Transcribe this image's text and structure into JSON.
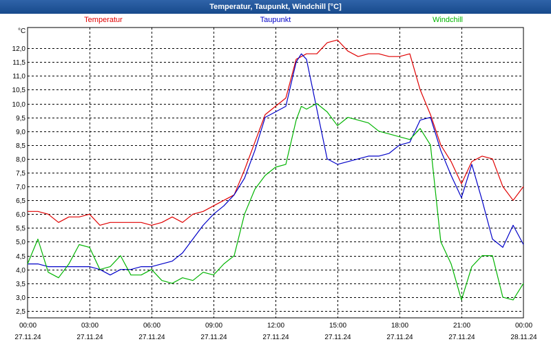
{
  "window": {
    "title": "Temperatur, Taupunkt, Windchill [°C]"
  },
  "chart_data": {
    "type": "line",
    "title": "Temperatur, Taupunkt, Windchill [°C]",
    "ylabel": "°C",
    "ylim": [
      2.25,
      12.75
    ],
    "yticks": [
      2.5,
      3.0,
      3.5,
      4.0,
      4.5,
      5.0,
      5.5,
      6.0,
      6.5,
      7.0,
      7.5,
      8.0,
      8.5,
      9.0,
      9.5,
      10.0,
      10.5,
      11.0,
      11.5,
      12.0
    ],
    "xlim": [
      0,
      24
    ],
    "xticks": [
      {
        "x": 0,
        "time": "00:00",
        "date": "27.11.24"
      },
      {
        "x": 3,
        "time": "03:00",
        "date": "27.11.24"
      },
      {
        "x": 6,
        "time": "06:00",
        "date": "27.11.24"
      },
      {
        "x": 9,
        "time": "09:00",
        "date": "27.11.24"
      },
      {
        "x": 12,
        "time": "12:00",
        "date": "27.11.24"
      },
      {
        "x": 15,
        "time": "15:00",
        "date": "27.11.24"
      },
      {
        "x": 18,
        "time": "18:00",
        "date": "27.11.24"
      },
      {
        "x": 21,
        "time": "21:00",
        "date": "27.11.24"
      },
      {
        "x": 24,
        "time": "00:00",
        "date": "28.11.24"
      }
    ],
    "grid": true,
    "legend_position": "top",
    "series": [
      {
        "name": "Temperatur",
        "color": "#e00000",
        "x": [
          0,
          0.5,
          1,
          1.5,
          2,
          2.5,
          3,
          3.5,
          4,
          4.5,
          5,
          5.5,
          6,
          6.5,
          7,
          7.5,
          8,
          8.5,
          9,
          9.5,
          10,
          10.5,
          11,
          11.5,
          12,
          12.5,
          13,
          13.25,
          13.5,
          14,
          14.5,
          15,
          15.5,
          16,
          16.5,
          17,
          17.5,
          18,
          18.5,
          19,
          19.5,
          20,
          20.5,
          21,
          21.5,
          22,
          22.5,
          23,
          23.5,
          24
        ],
        "y": [
          6.1,
          6.1,
          6.0,
          5.7,
          5.9,
          5.9,
          6.0,
          5.6,
          5.7,
          5.7,
          5.7,
          5.7,
          5.6,
          5.7,
          5.9,
          5.7,
          6.0,
          6.1,
          6.3,
          6.5,
          6.7,
          7.6,
          8.6,
          9.6,
          9.9,
          10.2,
          11.6,
          11.7,
          11.8,
          11.8,
          12.2,
          12.3,
          11.9,
          11.7,
          11.8,
          11.8,
          11.7,
          11.7,
          11.8,
          10.5,
          9.6,
          8.5,
          7.9,
          7.1,
          7.9,
          8.1,
          8.0,
          7.0,
          6.5,
          7.0
        ]
      },
      {
        "name": "Taupunkt",
        "color": "#0000c8",
        "x": [
          0,
          0.5,
          1,
          1.5,
          2,
          2.5,
          3,
          3.5,
          4,
          4.5,
          5,
          5.5,
          6,
          6.5,
          7,
          7.5,
          8,
          8.5,
          9,
          9.5,
          10,
          10.5,
          11,
          11.5,
          12,
          12.5,
          13,
          13.25,
          13.5,
          14,
          14.5,
          15,
          15.5,
          16,
          16.5,
          17,
          17.5,
          18,
          18.5,
          19,
          19.5,
          20,
          20.5,
          21,
          21.5,
          22,
          22.5,
          23,
          23.5,
          24
        ],
        "y": [
          4.2,
          4.2,
          4.1,
          4.1,
          4.1,
          4.1,
          4.1,
          4.0,
          3.8,
          4.0,
          4.0,
          4.1,
          4.1,
          4.2,
          4.3,
          4.6,
          5.1,
          5.6,
          6.0,
          6.3,
          6.7,
          7.3,
          8.3,
          9.5,
          9.7,
          9.9,
          11.5,
          11.8,
          11.6,
          9.8,
          8.0,
          7.8,
          7.9,
          8.0,
          8.1,
          8.1,
          8.2,
          8.5,
          8.6,
          9.4,
          9.5,
          8.3,
          7.4,
          6.6,
          7.8,
          6.5,
          5.1,
          4.8,
          5.6,
          4.9
        ]
      },
      {
        "name": "Windchill",
        "color": "#00b400",
        "x": [
          0,
          0.5,
          1,
          1.5,
          2,
          2.5,
          3,
          3.5,
          4,
          4.5,
          5,
          5.5,
          6,
          6.5,
          7,
          7.5,
          8,
          8.5,
          9,
          9.5,
          10,
          10.5,
          11,
          11.5,
          12,
          12.5,
          13,
          13.25,
          13.5,
          14,
          14.5,
          15,
          15.5,
          16,
          16.5,
          17,
          17.5,
          18,
          18.5,
          19,
          19.5,
          20,
          20.5,
          21,
          21.5,
          22,
          22.5,
          23,
          23.5,
          24
        ],
        "y": [
          4.2,
          5.1,
          3.9,
          3.7,
          4.2,
          4.9,
          4.8,
          4.0,
          4.1,
          4.5,
          3.8,
          3.8,
          4.0,
          3.6,
          3.5,
          3.7,
          3.6,
          3.9,
          3.8,
          4.2,
          4.5,
          6.0,
          6.9,
          7.4,
          7.7,
          7.8,
          9.4,
          9.9,
          9.8,
          10.0,
          9.7,
          9.2,
          9.5,
          9.4,
          9.3,
          9.0,
          8.9,
          8.8,
          8.7,
          9.1,
          8.5,
          5.0,
          4.2,
          2.9,
          4.1,
          4.5,
          4.5,
          3.0,
          2.9,
          3.5
        ]
      }
    ]
  }
}
